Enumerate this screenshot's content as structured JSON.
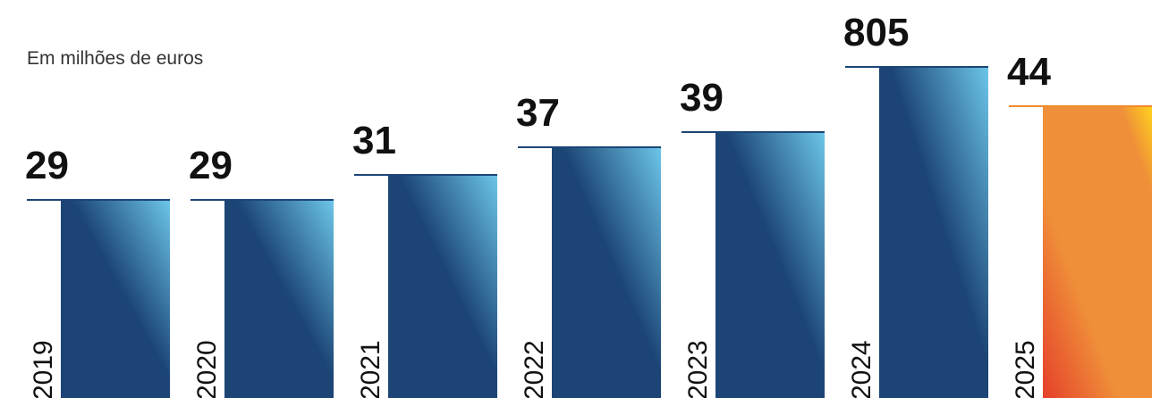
{
  "chart_data": {
    "type": "bar",
    "title": "",
    "subtitle": "Em milhões de euros",
    "xlabel": "",
    "ylabel": "",
    "categories": [
      "2019",
      "2020",
      "2021",
      "2022",
      "2023",
      "2024",
      "2025"
    ],
    "values": [
      29,
      29,
      31,
      37,
      39,
      805,
      44
    ],
    "grid": false,
    "legend": "none",
    "colors": {
      "bar_dark": "#1c4576",
      "bar_light": "#6cc6e8",
      "highlight_main": "#ef8f39",
      "highlight_red": "#e5402a",
      "highlight_yellow": "#ffd21e",
      "top_line": "#1c4576",
      "highlight_top_line": "#f08a2a",
      "label_text": "#111111",
      "year_text": "#111111"
    },
    "highlight_index": 6
  }
}
